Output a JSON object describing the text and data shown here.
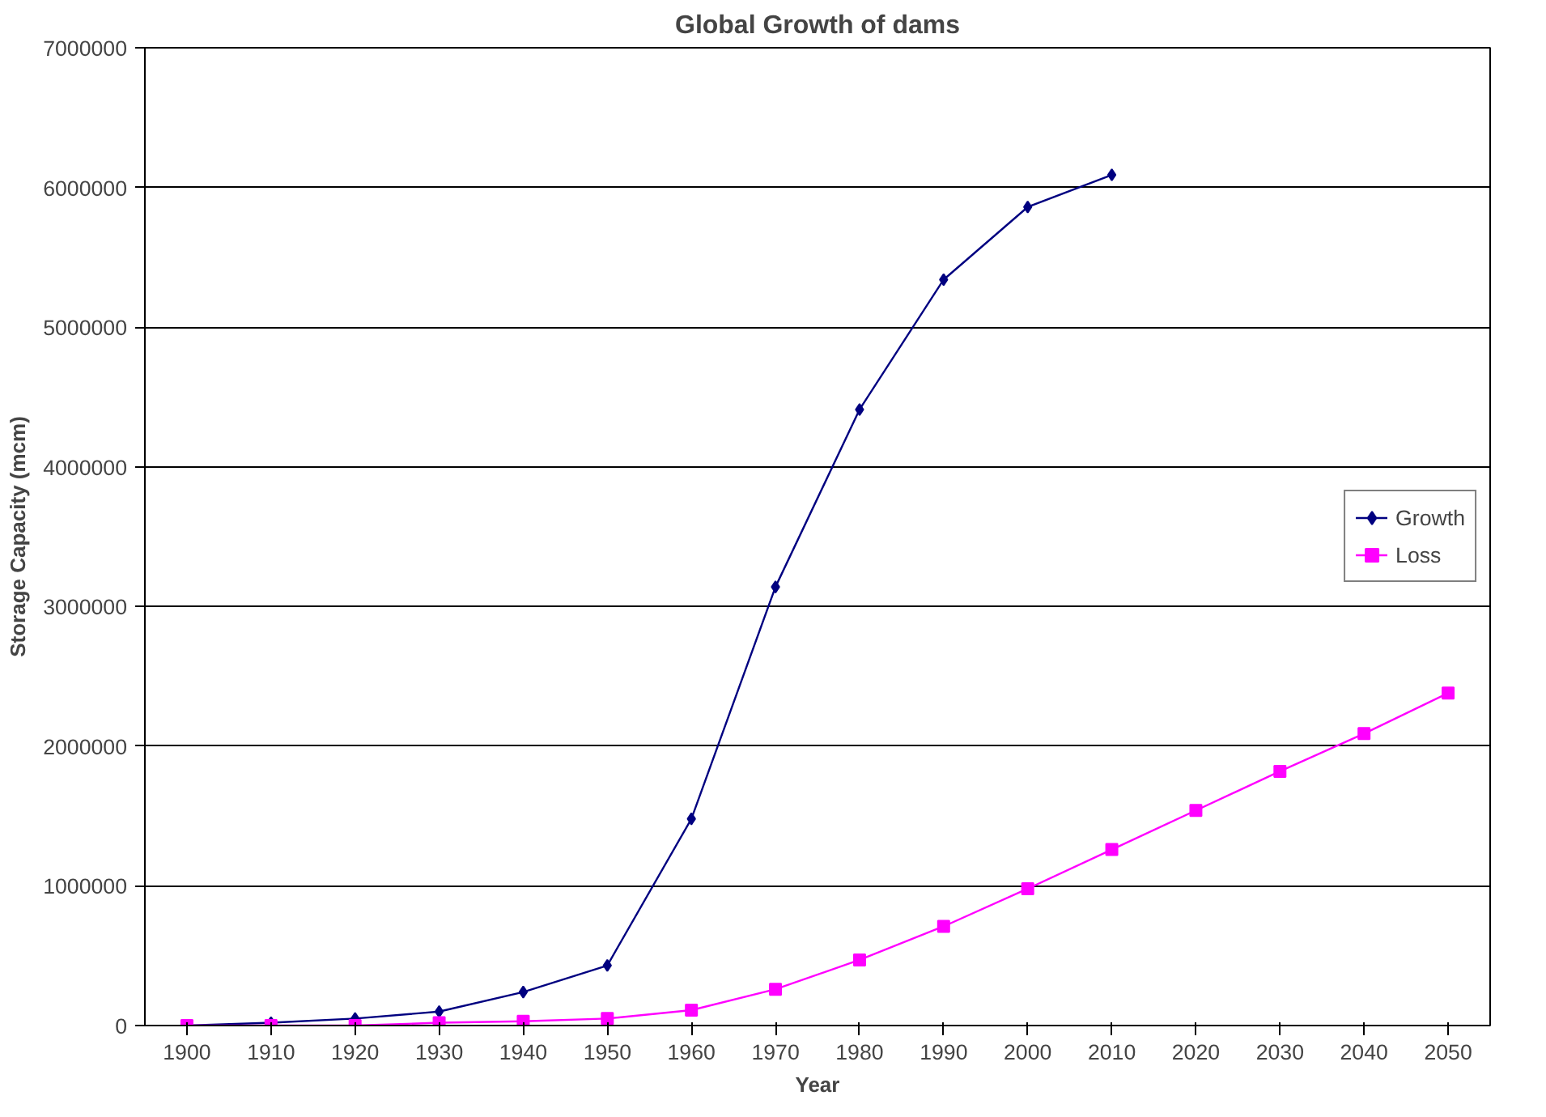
{
  "chart_data": {
    "type": "line",
    "title": "Global Growth of dams",
    "xlabel": "Year",
    "ylabel": "Storage Capacity (mcm)",
    "categories": [
      "1900",
      "1910",
      "1920",
      "1930",
      "1940",
      "1950",
      "1960",
      "1970",
      "1980",
      "1990",
      "2000",
      "2010",
      "2020",
      "2030",
      "2040",
      "2050"
    ],
    "series": [
      {
        "name": "Growth",
        "color": "#000080",
        "marker": "diamond",
        "values": [
          0,
          20000,
          50000,
          100000,
          240000,
          430000,
          1480000,
          3140000,
          4410000,
          5340000,
          5860000,
          6090000,
          null,
          null,
          null,
          null
        ]
      },
      {
        "name": "Loss",
        "color": "#ff00ff",
        "marker": "square",
        "values": [
          0,
          0,
          0,
          20000,
          30000,
          50000,
          110000,
          260000,
          470000,
          710000,
          980000,
          1260000,
          1540000,
          1820000,
          2090000,
          2380000
        ]
      }
    ],
    "ylim": [
      0,
      7000000
    ],
    "yticks": [
      0,
      1000000,
      2000000,
      3000000,
      4000000,
      5000000,
      6000000,
      7000000
    ],
    "grid": "y",
    "legend": "right",
    "line_style": "solid"
  }
}
